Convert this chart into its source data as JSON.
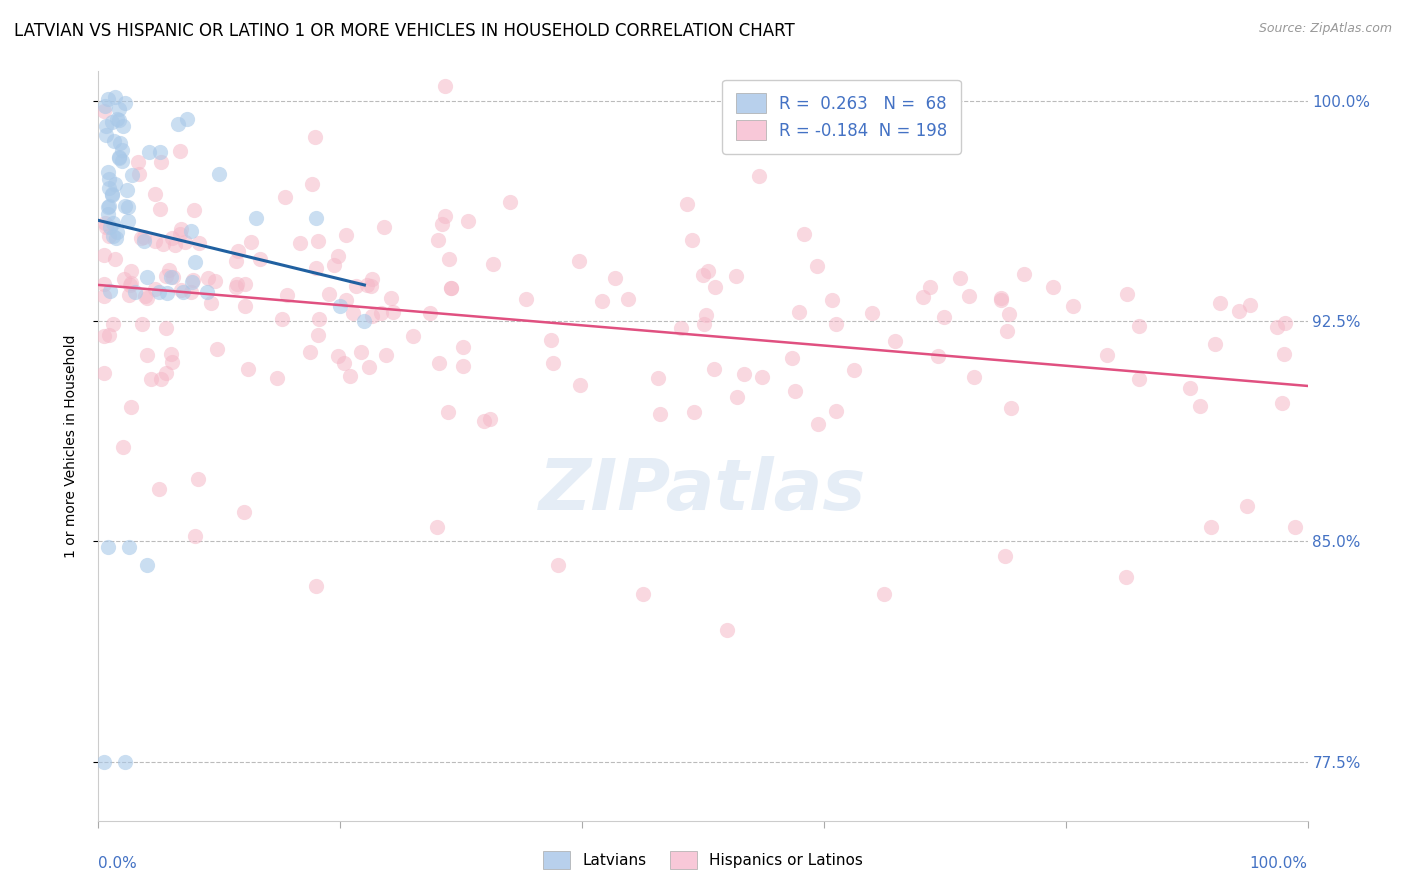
{
  "title": "LATVIAN VS HISPANIC OR LATINO 1 OR MORE VEHICLES IN HOUSEHOLD CORRELATION CHART",
  "source": "Source: ZipAtlas.com",
  "ylabel": "1 or more Vehicles in Household",
  "xlim": [
    0.0,
    1.0
  ],
  "ylim": [
    0.755,
    1.01
  ],
  "yticks": [
    0.775,
    0.85,
    0.925,
    1.0
  ],
  "ytick_labels": [
    "77.5%",
    "85.0%",
    "92.5%",
    "100.0%"
  ],
  "latvian_R": 0.263,
  "latvian_N": 68,
  "hispanic_R": -0.184,
  "hispanic_N": 198,
  "blue_scatter_color": "#a8c8e8",
  "pink_scatter_color": "#f5b8c8",
  "blue_line_color": "#2060a0",
  "pink_line_color": "#e05080",
  "legend_blue_face": "#b8d0ec",
  "legend_pink_face": "#f8c8d8",
  "title_fontsize": 12,
  "label_fontsize": 10,
  "tick_fontsize": 11,
  "source_fontsize": 9,
  "background_color": "#ffffff",
  "grid_color": "#bbbbbb",
  "label_color": "#4472c4"
}
